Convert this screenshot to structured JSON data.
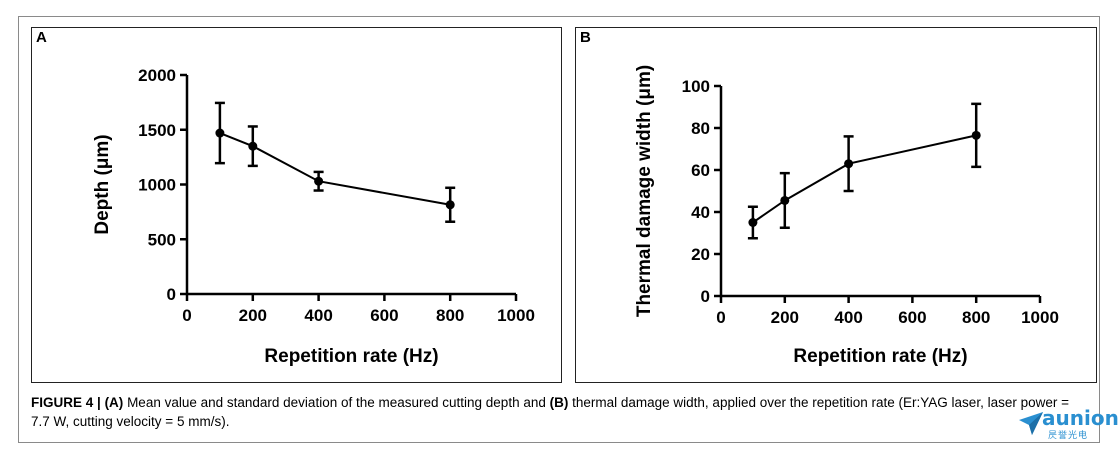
{
  "chart_data": [
    {
      "type": "line",
      "panel_label": "A",
      "title": "",
      "xlabel": "Repetition rate (Hz)",
      "ylabel": "Depth (μm)",
      "xlim": [
        0,
        1000
      ],
      "ylim": [
        0,
        2000
      ],
      "xticks": [
        0,
        200,
        400,
        600,
        800,
        1000
      ],
      "yticks": [
        0,
        500,
        1000,
        1500,
        2000
      ],
      "grid": false,
      "series": [
        {
          "x": [
            100,
            200,
            400,
            800
          ],
          "y": [
            1470,
            1350,
            1030,
            815
          ],
          "yerr": [
            275,
            180,
            85,
            155
          ]
        }
      ]
    },
    {
      "type": "line",
      "panel_label": "B",
      "title": "",
      "xlabel": "Repetition rate (Hz)",
      "ylabel": "Thermal damage width (μm)",
      "xlim": [
        0,
        1000
      ],
      "ylim": [
        0,
        100
      ],
      "xticks": [
        0,
        200,
        400,
        600,
        800,
        1000
      ],
      "yticks": [
        0,
        20,
        40,
        60,
        80,
        100
      ],
      "grid": false,
      "series": [
        {
          "x": [
            100,
            200,
            400,
            800
          ],
          "y": [
            35,
            45.5,
            63,
            76.5
          ],
          "yerr": [
            7.5,
            13,
            13,
            15
          ]
        }
      ]
    }
  ],
  "caption": {
    "label": "FIGURE 4 |",
    "a_ref": "(A)",
    "text_1": " Mean value and standard deviation of the measured cutting depth and ",
    "b_ref": "(B)",
    "text_2": " thermal damage width, applied over the repetition rate (Er:YAG laser, laser power = 7.7 W, cutting velocity = 5 mm/s)."
  },
  "watermark": {
    "text": "aunion",
    "subtext": "昃誉光电",
    "color": "#2a8fd0",
    "icon": "paper-plane-icon"
  }
}
